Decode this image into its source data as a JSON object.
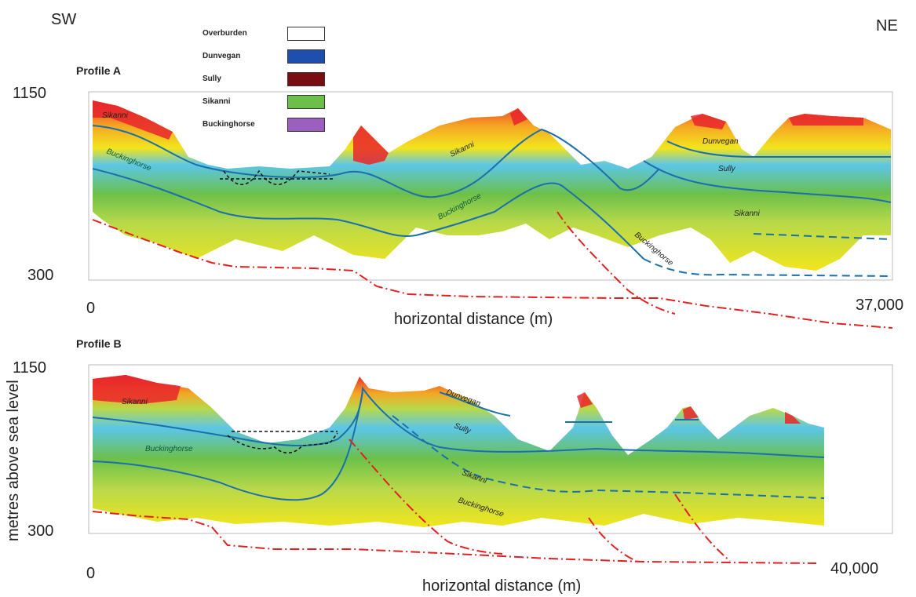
{
  "directions": {
    "left": "SW",
    "right": "NE"
  },
  "legend": [
    {
      "label": "Overburden",
      "color": "#ffffff"
    },
    {
      "label": "Dunvegan",
      "color": "#1f4fae"
    },
    {
      "label": "Sully",
      "color": "#7a0d12"
    },
    {
      "label": "Sikanni",
      "color": "#6cc04a"
    },
    {
      "label": "Buckinghorse",
      "color": "#9b5fc0"
    }
  ],
  "profile_a": {
    "title": "Profile A",
    "y_top": "1150",
    "y_bottom": "300",
    "x_start": "0",
    "x_end": "37,000",
    "x_label": "horizontal distance (m)",
    "layers": [
      "Sikanni",
      "Buckinghorse",
      "Sikanni",
      "Buckinghorse",
      "Dunvegan",
      "Sully",
      "Sikanni",
      "Buckinghorse"
    ]
  },
  "profile_b": {
    "title": "Profile B",
    "y_top": "1150",
    "y_bottom": "300",
    "x_start": "0",
    "x_end": "40,000",
    "x_label": "horizontal distance (m)",
    "layers": [
      "Sikanni",
      "Buckinghorse",
      "Dunvegan",
      "Sully",
      "Sikanni",
      "Buckinghorse"
    ]
  },
  "y_axis_label": "metres above sea level",
  "colors": {
    "fault": "#e32020",
    "contact": "#1b6fae",
    "hot": "#e8262b",
    "warm": "#f5a623",
    "yellow": "#f2e51c",
    "light_green": "#b8d94a",
    "green": "#6cc04a",
    "cyan": "#5cc6e8"
  }
}
